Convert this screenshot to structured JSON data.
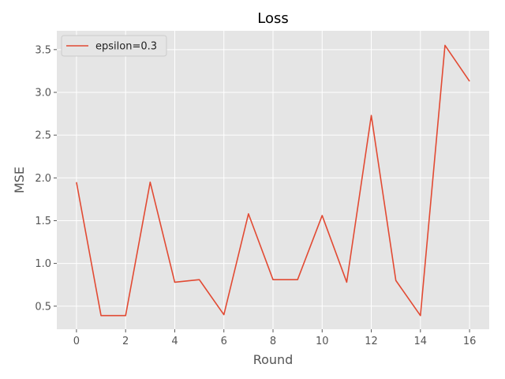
{
  "chart_data": {
    "type": "line",
    "title": "Loss",
    "xlabel": "Round",
    "ylabel": "MSE",
    "xlim": [
      -0.8,
      16.8
    ],
    "ylim": [
      0.23,
      3.72
    ],
    "xticks": [
      0,
      2,
      4,
      6,
      8,
      10,
      12,
      14,
      16
    ],
    "yticks": [
      0.5,
      1.0,
      1.5,
      2.0,
      2.5,
      3.0,
      3.5
    ],
    "ytick_labels": [
      "0.5",
      "1.0",
      "1.5",
      "2.0",
      "2.5",
      "3.0",
      "3.5"
    ],
    "grid": true,
    "legend_position": "top-left",
    "series": [
      {
        "name": "epsilon=0.3",
        "color": "#E24A33",
        "x": [
          0,
          1,
          2,
          3,
          4,
          5,
          6,
          7,
          8,
          9,
          10,
          11,
          12,
          13,
          14,
          15,
          16
        ],
        "y": [
          1.95,
          0.39,
          0.39,
          1.95,
          0.78,
          0.81,
          0.4,
          1.58,
          0.81,
          0.81,
          1.56,
          0.78,
          2.73,
          0.8,
          0.39,
          3.55,
          3.13
        ]
      }
    ]
  }
}
